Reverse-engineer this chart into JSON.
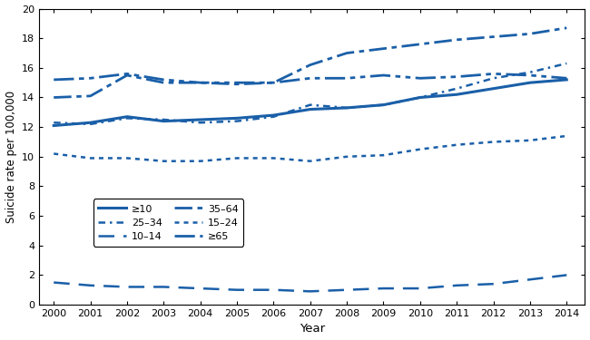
{
  "years": [
    2000,
    2001,
    2002,
    2003,
    2004,
    2005,
    2006,
    2007,
    2008,
    2009,
    2010,
    2011,
    2012,
    2013,
    2014
  ],
  "series": {
    ">=10": [
      12.1,
      12.3,
      12.7,
      12.4,
      12.5,
      12.6,
      12.8,
      13.2,
      13.3,
      13.5,
      14.0,
      14.2,
      14.6,
      15.0,
      15.2
    ],
    "10-14": [
      1.5,
      1.3,
      1.2,
      1.2,
      1.1,
      1.0,
      1.0,
      0.9,
      1.0,
      1.1,
      1.1,
      1.3,
      1.4,
      1.7,
      2.0
    ],
    "15-24": [
      10.2,
      9.9,
      9.9,
      9.7,
      9.7,
      9.9,
      9.9,
      9.7,
      10.0,
      10.1,
      10.5,
      10.8,
      11.0,
      11.1,
      11.4
    ],
    "25-34": [
      12.3,
      12.2,
      12.6,
      12.5,
      12.3,
      12.4,
      12.7,
      13.5,
      13.3,
      13.5,
      14.0,
      14.6,
      15.3,
      15.7,
      16.3
    ],
    "35-64": [
      14.0,
      14.1,
      15.5,
      15.0,
      15.0,
      14.9,
      15.0,
      16.2,
      17.0,
      17.3,
      17.6,
      17.9,
      18.1,
      18.3,
      18.7
    ],
    ">=65": [
      15.2,
      15.3,
      15.6,
      15.2,
      15.0,
      15.0,
      15.0,
      15.3,
      15.3,
      15.5,
      15.3,
      15.4,
      15.6,
      15.5,
      15.3
    ]
  },
  "color": "#1a5fa8",
  "xlabel": "Year",
  "ylabel": "Suicide rate per 100,000",
  "ylim": [
    0,
    20
  ],
  "yticks": [
    0,
    2,
    4,
    6,
    8,
    10,
    12,
    14,
    16,
    18,
    20
  ],
  "display_names": {
    ">=10": "≥10",
    "10-14": "10–14",
    "15-24": "15–24",
    "25-34": "25–34",
    "35-64": "35–64",
    ">=65": "≥65"
  },
  "legend_col1": [
    ">=10",
    "10-14",
    "15-24"
  ],
  "legend_col2": [
    "25-34",
    "35-64",
    ">=65"
  ]
}
